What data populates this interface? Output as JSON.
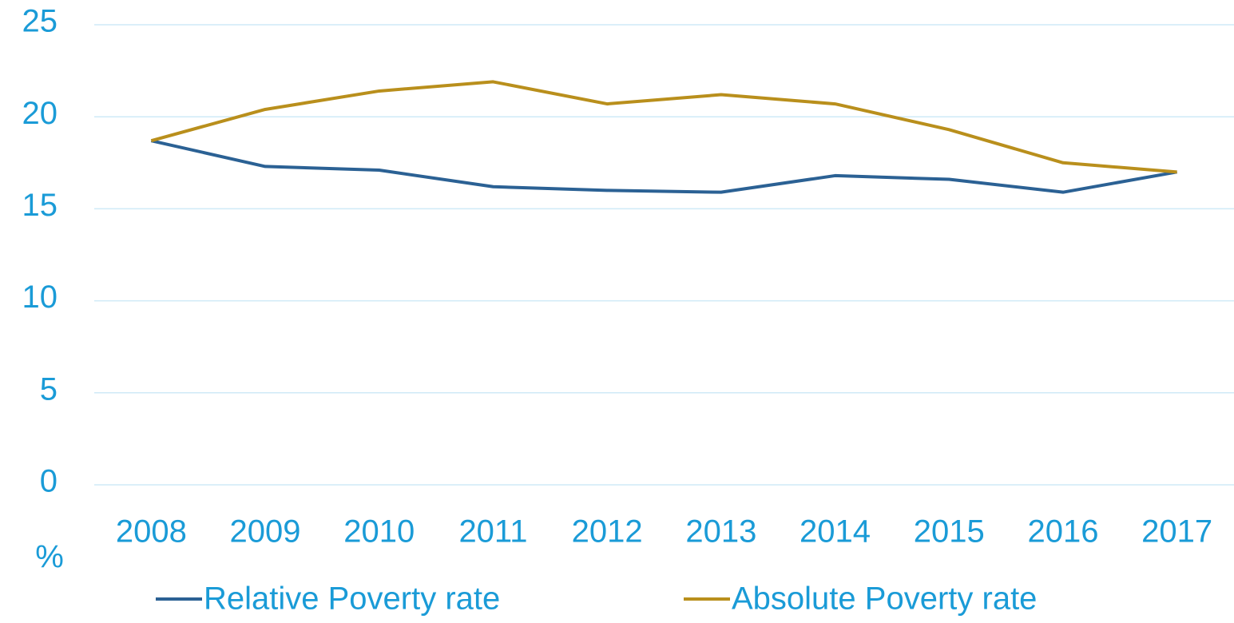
{
  "chart_data": {
    "type": "line",
    "y_label": "%",
    "categories": [
      "2008",
      "2009",
      "2010",
      "2011",
      "2012",
      "2013",
      "2014",
      "2015",
      "2016",
      "2017"
    ],
    "series": [
      {
        "name": "Relative Poverty rate",
        "color": "#2b6194",
        "values": [
          18.7,
          17.3,
          17.1,
          16.2,
          16.0,
          15.9,
          16.8,
          16.6,
          15.9,
          17.0
        ]
      },
      {
        "name": "Absolute Poverty rate",
        "color": "#b98f1c",
        "values": [
          18.7,
          20.4,
          21.4,
          21.9,
          20.7,
          21.2,
          20.7,
          19.3,
          17.5,
          17.0
        ]
      }
    ],
    "ylim": [
      0,
      25
    ],
    "yticks": [
      0,
      5,
      10,
      15,
      20,
      25
    ],
    "grid": true,
    "legend": "bottom"
  }
}
